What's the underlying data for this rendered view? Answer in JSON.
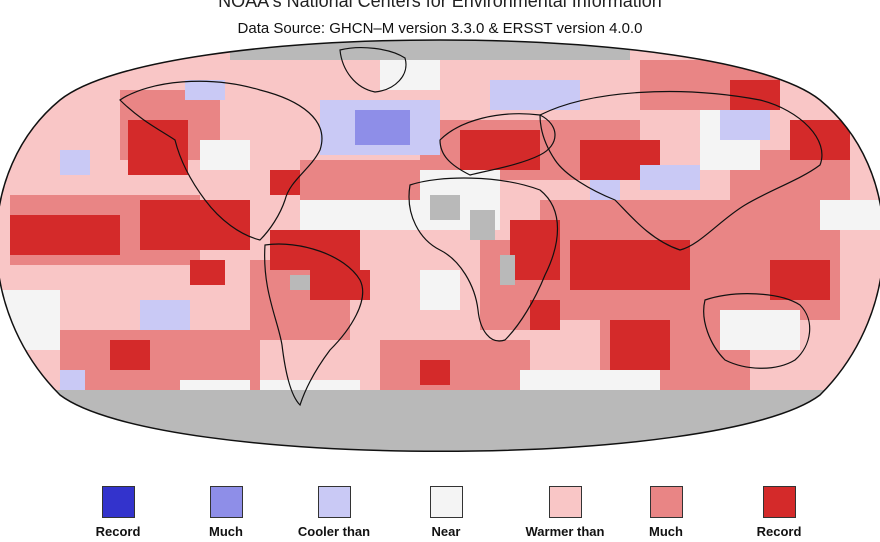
{
  "header": {
    "title": "NOAA's National Centers for Environmental Information",
    "subtitle": "Data Source: GHCN–M version 3.3.0 & ERSST version 4.0.0"
  },
  "legend": {
    "items": [
      {
        "label": "Record",
        "color": "#3333cc"
      },
      {
        "label": "Much",
        "color": "#8e8ee8"
      },
      {
        "label": "Cooler than",
        "color": "#c9c9f5"
      },
      {
        "label": "Near",
        "color": "#f4f4f4"
      },
      {
        "label": "Warmer than",
        "color": "#f9c6c6"
      },
      {
        "label": "Much",
        "color": "#e98585"
      },
      {
        "label": "Record",
        "color": "#d42a2a"
      }
    ]
  },
  "map": {
    "projection": "Robinson",
    "category_colors": {
      "record_cool": "#3333cc",
      "much_cooler": "#8e8ee8",
      "cooler": "#c9c9f5",
      "near": "#f4f4f4",
      "warmer": "#f9c6c6",
      "much_warmer": "#e98585",
      "record_warm": "#d42a2a",
      "missing": "#b9b9b9"
    }
  }
}
